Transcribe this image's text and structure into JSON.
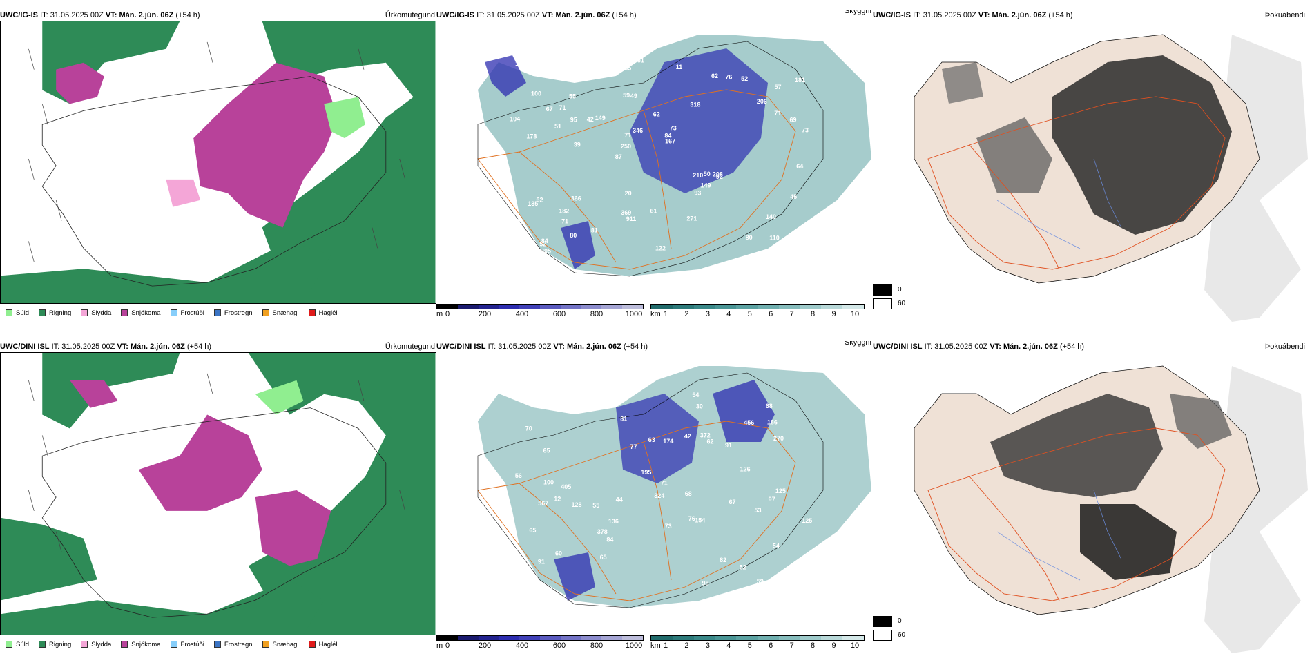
{
  "rows": [
    {
      "model": "UWC/IG-IS",
      "it_label": "IT:",
      "it": "31.05.2025 00Z",
      "vt_label": "VT:",
      "vt": "Mán. 2.jún. 06Z",
      "lead": "(+54 h)"
    },
    {
      "model": "UWC/DINI ISL",
      "it_label": "IT:",
      "it": "31.05.2025 00Z",
      "vt_label": "VT:",
      "vt": "Mán. 2.jún. 06Z",
      "lead": "(+54 h)"
    }
  ],
  "panel_titles": {
    "precip": "Úrkomutegund",
    "visibility": "Skyggni",
    "fog": "Þokuábendi"
  },
  "precip_legend": [
    {
      "label": "Súld",
      "color": "#90ee90"
    },
    {
      "label": "Rigning",
      "color": "#2e8b57"
    },
    {
      "label": "Slydda",
      "color": "#f4a6d7"
    },
    {
      "label": "Snjókoma",
      "color": "#b8429a"
    },
    {
      "label": "Frostúði",
      "color": "#87cefa"
    },
    {
      "label": "Frostregn",
      "color": "#3b74c4"
    },
    {
      "label": "Snæhagl",
      "color": "#f0a020"
    },
    {
      "label": "Haglél",
      "color": "#e01b1b"
    }
  ],
  "ceiling_bar": {
    "unit": "m",
    "ticks": [
      "0",
      "200",
      "400",
      "600",
      "800",
      "1000"
    ],
    "colors": [
      "#000000",
      "#1a1a6e",
      "#23238f",
      "#2d2db0",
      "#4040b8",
      "#5a5abf",
      "#7373c6",
      "#8c8ccd",
      "#a5a5d4",
      "#bdbddb"
    ]
  },
  "vis_bar": {
    "unit": "km",
    "ticks": [
      "1",
      "2",
      "3",
      "4",
      "5",
      "6",
      "7",
      "8",
      "9",
      "10"
    ],
    "colors": [
      "#216b6b",
      "#2d7a7a",
      "#3a8888",
      "#4a9595",
      "#5ca2a2",
      "#70afaf",
      "#86bcbc",
      "#9ecaca",
      "#b8d8d8",
      "#d4e8e8"
    ]
  },
  "fog_legend": [
    {
      "label": "0",
      "color": "#000000"
    },
    {
      "label": "60",
      "color": "#ffffff"
    }
  ],
  "ceiling_values_top": [
    "110",
    "178",
    "57",
    "87",
    "318",
    "84",
    "59",
    "62",
    "62",
    "149",
    "250",
    "71",
    "49",
    "73",
    "92",
    "100",
    "65",
    "73",
    "210",
    "71",
    "250",
    "369",
    "71",
    "55",
    "62",
    "366",
    "80",
    "140",
    "208",
    "122",
    "42",
    "51",
    "93",
    "80",
    "69",
    "84",
    "197",
    "911",
    "167",
    "135",
    "206",
    "181",
    "149",
    "271",
    "182",
    "305",
    "102",
    "61",
    "52",
    "51",
    "39",
    "104",
    "71",
    "76",
    "52",
    "11",
    "57",
    "346",
    "45",
    "20",
    "81",
    "50",
    "95",
    "46",
    "10",
    "67",
    "64"
  ],
  "ceiling_values_bottom": [
    "59",
    "12",
    "76",
    "70",
    "54",
    "65",
    "60",
    "55",
    "91",
    "63",
    "62",
    "52",
    "84",
    "81",
    "68",
    "65",
    "67",
    "71",
    "56",
    "91",
    "68",
    "174",
    "126",
    "125",
    "125",
    "100",
    "128",
    "324",
    "195",
    "186",
    "154",
    "567",
    "378",
    "372",
    "77",
    "53",
    "97",
    "82",
    "456",
    "98",
    "136",
    "73",
    "65",
    "54",
    "44",
    "405",
    "270",
    "30",
    "42"
  ]
}
